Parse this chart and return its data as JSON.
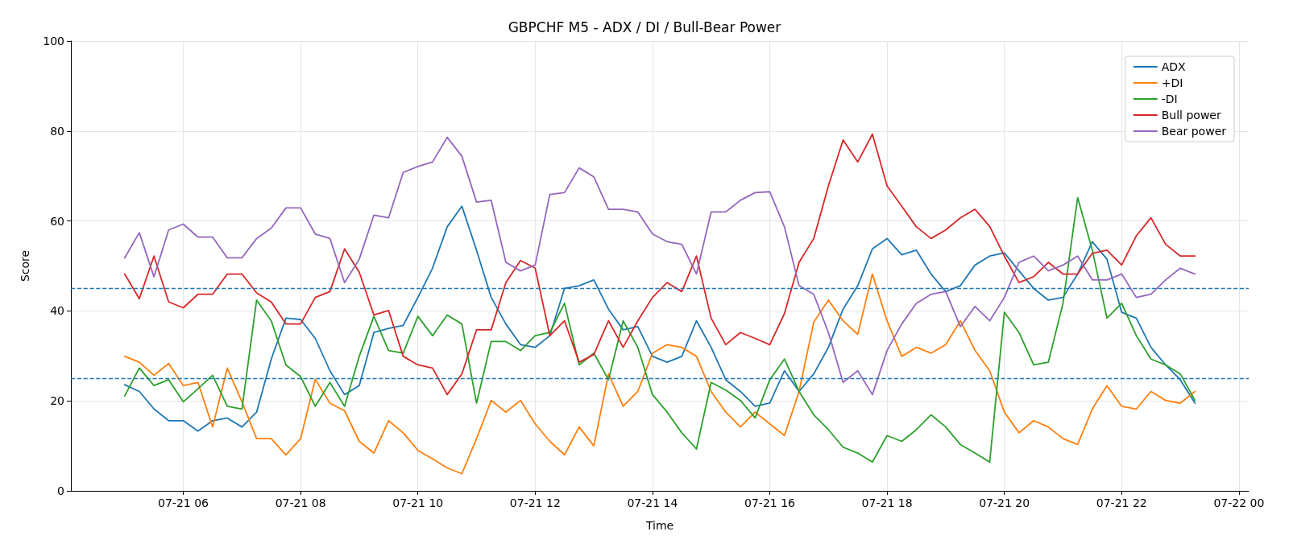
{
  "chart_data": {
    "type": "line",
    "title": "GBPCHF M5 - ADX / DI / Bull-Bear Power",
    "xlabel": "Time",
    "ylabel": "Score",
    "x": [
      "--07-21T05:00",
      "--07-21T05:15",
      "--07-21T05:30",
      "--07-21T05:45",
      "--07-21T06:00",
      "--07-21T06:15",
      "--07-21T06:30",
      "--07-21T06:45",
      "--07-21T07:00",
      "--07-21T07:15",
      "--07-21T07:30",
      "--07-21T07:45",
      "--07-21T08:00",
      "--07-21T08:15",
      "--07-21T08:30",
      "--07-21T08:45",
      "--07-21T09:00",
      "--07-21T09:15",
      "--07-21T09:30",
      "--07-21T09:45",
      "--07-21T10:00",
      "--07-21T10:15",
      "--07-21T10:30",
      "--07-21T10:45",
      "--07-21T11:00",
      "--07-21T11:15",
      "--07-21T11:30",
      "--07-21T11:45",
      "--07-21T12:00",
      "--07-21T12:15",
      "--07-21T12:30",
      "--07-21T12:45",
      "--07-21T13:00",
      "--07-21T13:15",
      "--07-21T13:30",
      "--07-21T13:45",
      "--07-21T14:00",
      "--07-21T14:15",
      "--07-21T14:30",
      "--07-21T14:45",
      "--07-21T15:00",
      "--07-21T15:15",
      "--07-21T15:30",
      "--07-21T15:45",
      "--07-21T16:00",
      "--07-21T16:15",
      "--07-21T16:30",
      "--07-21T16:45",
      "--07-21T17:00",
      "--07-21T17:15",
      "--07-21T17:30",
      "--07-21T17:45",
      "--07-21T18:00",
      "--07-21T18:15",
      "--07-21T18:30",
      "--07-21T18:45",
      "--07-21T19:00",
      "--07-21T19:15",
      "--07-21T19:30",
      "--07-21T19:45",
      "--07-21T20:00",
      "--07-21T20:15",
      "--07-21T20:30",
      "--07-21T20:45",
      "--07-21T21:00",
      "--07-21T21:15",
      "--07-21T21:30",
      "--07-21T21:45",
      "--07-21T22:00",
      "--07-21T22:15",
      "--07-21T22:30",
      "--07-21T22:45",
      "--07-21T23:00",
      "--07-21T23:15"
    ],
    "series": [
      {
        "name": "ADX",
        "color": "#1f77b4",
        "values": [
          23.6,
          22.1,
          18.2,
          15.6,
          15.6,
          13.3,
          15.6,
          16.2,
          14.2,
          17.5,
          29.3,
          38.4,
          38.1,
          33.9,
          26.7,
          21.4,
          23.4,
          35.2,
          36.1,
          36.8,
          43.0,
          49.5,
          58.7,
          63.3,
          53.5,
          43.0,
          37.1,
          32.5,
          31.9,
          34.5,
          45.0,
          45.6,
          46.9,
          40.4,
          35.8,
          36.5,
          29.9,
          28.6,
          29.9,
          37.8,
          31.9,
          24.7,
          22.1,
          18.8,
          19.5,
          26.7,
          22.1,
          26.0,
          31.9,
          40.4,
          45.6,
          53.8,
          56.1,
          52.5,
          53.5,
          48.2,
          44.3,
          45.6,
          50.2,
          52.2,
          52.9,
          48.9,
          45.0,
          42.4,
          43.0,
          48.2,
          55.4,
          51.5,
          39.7,
          38.4,
          31.9,
          28.0,
          24.7,
          19.5
        ]
      },
      {
        "name": "+DI",
        "color": "#ff7f0e",
        "values": [
          29.9,
          28.6,
          25.7,
          28.3,
          23.4,
          24.1,
          14.2,
          27.3,
          19.8,
          11.6,
          11.6,
          8.0,
          11.6,
          24.8,
          19.5,
          17.8,
          11.0,
          8.4,
          15.6,
          12.9,
          9.0,
          7.1,
          5.1,
          3.8,
          11.6,
          20.1,
          17.5,
          20.1,
          14.9,
          11.0,
          8.0,
          14.2,
          10.0,
          26.0,
          18.8,
          22.1,
          30.6,
          32.5,
          31.9,
          29.9,
          22.1,
          17.5,
          14.2,
          17.5,
          14.9,
          12.3,
          22.1,
          37.5,
          42.4,
          37.8,
          34.8,
          48.2,
          37.8,
          29.9,
          31.9,
          30.6,
          32.5,
          37.8,
          31.2,
          26.7,
          17.5,
          12.9,
          15.6,
          14.2,
          11.6,
          10.3,
          18.2,
          23.4,
          18.8,
          18.2,
          22.1,
          20.1,
          19.5,
          22.1
        ]
      },
      {
        "name": "-DI",
        "color": "#2ca02c",
        "values": [
          21.1,
          27.3,
          23.4,
          24.7,
          19.8,
          22.7,
          25.7,
          18.8,
          18.2,
          42.4,
          37.8,
          28.0,
          25.4,
          18.8,
          24.1,
          18.8,
          29.9,
          38.8,
          31.2,
          30.6,
          38.8,
          34.5,
          39.1,
          37.1,
          19.5,
          33.2,
          33.2,
          31.2,
          34.5,
          35.2,
          41.7,
          28.0,
          30.6,
          24.7,
          37.8,
          31.9,
          21.4,
          17.5,
          12.9,
          9.3,
          24.1,
          22.4,
          20.1,
          16.2,
          24.7,
          29.3,
          22.1,
          16.9,
          13.6,
          9.7,
          8.4,
          6.4,
          12.3,
          11.0,
          13.6,
          16.9,
          14.2,
          10.3,
          8.4,
          6.4,
          39.7,
          35.2,
          28.0,
          28.6,
          41.7,
          65.2,
          53.5,
          38.4,
          41.7,
          34.5,
          29.3,
          28.0,
          26.0,
          20.1
        ]
      },
      {
        "name": "Bull power",
        "color": "#d62728",
        "values": [
          48.2,
          42.7,
          52.2,
          42.0,
          40.7,
          43.7,
          43.7,
          48.2,
          48.2,
          44.0,
          42.0,
          37.1,
          37.1,
          43.0,
          44.3,
          53.8,
          48.6,
          39.1,
          40.1,
          29.9,
          28.0,
          27.3,
          21.4,
          26.0,
          35.8,
          35.8,
          46.3,
          51.2,
          49.5,
          34.5,
          37.8,
          28.6,
          30.3,
          37.8,
          31.9,
          37.8,
          43.0,
          46.3,
          44.3,
          52.2,
          38.4,
          32.5,
          35.2,
          33.9,
          32.5,
          39.4,
          50.8,
          56.1,
          67.8,
          78.0,
          73.1,
          79.3,
          67.8,
          63.3,
          58.7,
          56.1,
          58.0,
          60.7,
          62.6,
          58.8,
          52.2,
          46.3,
          47.6,
          50.8,
          48.2,
          48.2,
          52.8,
          53.5,
          50.2,
          56.7,
          60.7,
          54.8,
          52.2,
          52.2
        ]
      },
      {
        "name": "Bear power",
        "color": "#9467bd",
        "values": [
          51.8,
          57.4,
          47.6,
          58.0,
          59.3,
          56.4,
          56.4,
          51.8,
          51.8,
          56.1,
          58.4,
          62.9,
          62.9,
          57.1,
          56.1,
          46.3,
          51.5,
          61.3,
          60.7,
          70.8,
          72.1,
          73.1,
          78.6,
          74.4,
          64.2,
          64.6,
          50.8,
          48.9,
          50.2,
          65.9,
          66.3,
          71.8,
          69.8,
          62.6,
          62.6,
          62.0,
          57.1,
          55.4,
          54.8,
          48.2,
          62.0,
          62.0,
          64.6,
          66.3,
          66.5,
          58.7,
          45.6,
          43.7,
          35.2,
          24.1,
          26.7,
          21.4,
          31.2,
          37.1,
          41.7,
          43.7,
          44.3,
          36.5,
          41.0,
          37.8,
          43.0,
          50.8,
          52.2,
          48.9,
          50.2,
          52.2,
          46.9,
          46.9,
          48.2,
          43.0,
          43.7,
          46.9,
          49.5,
          48.2
        ]
      }
    ],
    "xlim": [
      "--07-21T04:05",
      "--07-22T00:10"
    ],
    "xticks": [
      {
        "value": "--07-21T06:00",
        "label": "07-21 06"
      },
      {
        "value": "--07-21T08:00",
        "label": "07-21 08"
      },
      {
        "value": "--07-21T10:00",
        "label": "07-21 10"
      },
      {
        "value": "--07-21T12:00",
        "label": "07-21 12"
      },
      {
        "value": "--07-21T14:00",
        "label": "07-21 14"
      },
      {
        "value": "--07-21T16:00",
        "label": "07-21 16"
      },
      {
        "value": "--07-21T18:00",
        "label": "07-21 18"
      },
      {
        "value": "--07-21T20:00",
        "label": "07-21 20"
      },
      {
        "value": "--07-21T22:00",
        "label": "07-21 22"
      },
      {
        "value": "--07-22T00:00",
        "label": "07-22 00"
      }
    ],
    "ylim": [
      0,
      100
    ],
    "yticks": [
      0,
      20,
      40,
      60,
      80,
      100
    ],
    "ref_lines": [
      {
        "axis": "y",
        "value": 45,
        "color": "#1f77b4",
        "line_style": "dashed"
      },
      {
        "axis": "y",
        "value": 25,
        "color": "#1f77b4",
        "line_style": "dashed"
      }
    ],
    "grid": true,
    "legend": "top right",
    "line_style": "solid",
    "marker": "none"
  }
}
